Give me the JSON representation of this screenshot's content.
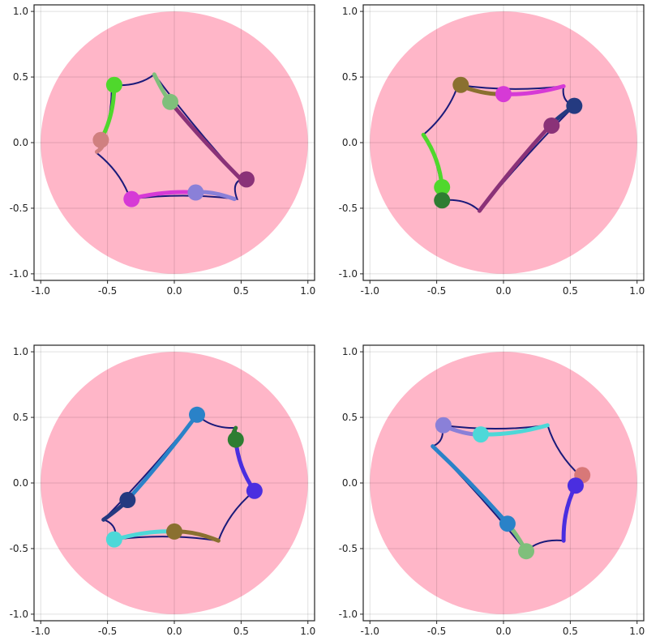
{
  "chart_data": [
    {
      "type": "scatter",
      "title": "",
      "xlabel": "",
      "ylabel": "",
      "xlim": [
        -1.05,
        1.05
      ],
      "ylim": [
        -1.05,
        1.05
      ],
      "xticks": [
        "-1.0",
        "-0.5",
        "0.0",
        "0.5",
        "1.0"
      ],
      "yticks": [
        "-1.0",
        "-0.5",
        "0.0",
        "0.5",
        "1.0"
      ],
      "grid": true,
      "disk": {
        "center": [
          0,
          0
        ],
        "radius": 1.0,
        "color": "#ffb6c8"
      },
      "boundary_color": "#1a1a7a",
      "boundary": [
        [
          -0.15,
          0.52
        ],
        [
          0.5,
          -0.28
        ],
        [
          0.47,
          -0.43
        ],
        [
          -0.33,
          -0.43
        ],
        [
          -0.58,
          -0.08
        ],
        [
          -0.47,
          0.44
        ],
        [
          -0.15,
          0.52
        ]
      ],
      "segments": [
        {
          "color": "#7fbf7b",
          "from": [
            -0.15,
            0.52
          ],
          "to": [
            -0.03,
            0.31
          ]
        },
        {
          "color": "#8a3278",
          "from": [
            -0.03,
            0.31
          ],
          "to": [
            0.5,
            -0.28
          ]
        },
        {
          "color": "#8a80d8",
          "from": [
            0.45,
            -0.43
          ],
          "to": [
            0.16,
            -0.38
          ]
        },
        {
          "color": "#d63ad6",
          "from": [
            0.16,
            -0.38
          ],
          "to": [
            -0.33,
            -0.43
          ]
        },
        {
          "color": "#d08080",
          "from": [
            -0.58,
            -0.07
          ],
          "to": [
            -0.55,
            0.02
          ]
        },
        {
          "color": "#4fd82c",
          "from": [
            -0.55,
            0.02
          ],
          "to": [
            -0.45,
            0.44
          ]
        }
      ],
      "points": [
        {
          "x": -0.45,
          "y": 0.44,
          "color": "#4fd82c"
        },
        {
          "x": -0.03,
          "y": 0.31,
          "color": "#7fbf7b"
        },
        {
          "x": -0.55,
          "y": 0.02,
          "color": "#d08080"
        },
        {
          "x": 0.54,
          "y": -0.28,
          "color": "#8a3278"
        },
        {
          "x": 0.16,
          "y": -0.38,
          "color": "#8a80d8"
        },
        {
          "x": -0.32,
          "y": -0.43,
          "color": "#d63ad6"
        }
      ]
    },
    {
      "type": "scatter",
      "title": "",
      "xlabel": "",
      "ylabel": "",
      "xlim": [
        -1.05,
        1.05
      ],
      "ylim": [
        -1.05,
        1.05
      ],
      "xticks": [
        "-1.0",
        "-0.5",
        "0.0",
        "0.5",
        "1.0"
      ],
      "yticks": [
        "-1.0",
        "-0.5",
        "0.0",
        "0.5",
        "1.0"
      ],
      "grid": true,
      "disk": {
        "center": [
          0,
          0
        ],
        "radius": 1.0,
        "color": "#ffb6c8"
      },
      "boundary_color": "#1a1a7a",
      "boundary": [
        [
          -0.34,
          0.44
        ],
        [
          0.45,
          0.43
        ],
        [
          0.53,
          0.28
        ],
        [
          -0.18,
          -0.52
        ],
        [
          -0.46,
          -0.44
        ],
        [
          -0.6,
          0.06
        ],
        [
          -0.34,
          0.44
        ]
      ],
      "segments": [
        {
          "color": "#8a7030",
          "from": [
            -0.34,
            0.44
          ],
          "to": [
            0.0,
            0.37
          ]
        },
        {
          "color": "#d63ad6",
          "from": [
            0.0,
            0.37
          ],
          "to": [
            0.45,
            0.43
          ]
        },
        {
          "color": "#243a80",
          "from": [
            0.53,
            0.28
          ],
          "to": [
            0.35,
            0.13
          ]
        },
        {
          "color": "#8a3278",
          "from": [
            0.35,
            0.13
          ],
          "to": [
            -0.18,
            -0.52
          ]
        },
        {
          "color": "#4fd82c",
          "from": [
            -0.6,
            0.06
          ],
          "to": [
            -0.46,
            -0.34
          ]
        },
        {
          "color": "#2e7d32",
          "from": [
            -0.46,
            -0.34
          ],
          "to": [
            -0.46,
            -0.43
          ]
        }
      ],
      "points": [
        {
          "x": -0.32,
          "y": 0.44,
          "color": "#8a7030"
        },
        {
          "x": 0.0,
          "y": 0.37,
          "color": "#d63ad6"
        },
        {
          "x": 0.53,
          "y": 0.28,
          "color": "#243a80"
        },
        {
          "x": 0.36,
          "y": 0.13,
          "color": "#8a3278"
        },
        {
          "x": -0.46,
          "y": -0.34,
          "color": "#4fd82c"
        },
        {
          "x": -0.46,
          "y": -0.44,
          "color": "#2e7d32"
        }
      ]
    },
    {
      "type": "scatter",
      "title": "",
      "xlabel": "",
      "ylabel": "",
      "xlim": [
        -1.05,
        1.05
      ],
      "ylim": [
        -1.05,
        1.05
      ],
      "xticks": [
        "-1.0",
        "-0.5",
        "0.0",
        "0.5",
        "1.0"
      ],
      "yticks": [
        "-1.0",
        "-0.5",
        "0.0",
        "0.5",
        "1.0"
      ],
      "grid": true,
      "disk": {
        "center": [
          0,
          0
        ],
        "radius": 1.0,
        "color": "#ffb6c8"
      },
      "boundary_color": "#1a1a7a",
      "boundary": [
        [
          0.17,
          0.52
        ],
        [
          0.46,
          0.42
        ],
        [
          0.6,
          -0.06
        ],
        [
          0.33,
          -0.44
        ],
        [
          -0.44,
          -0.43
        ],
        [
          -0.53,
          -0.28
        ],
        [
          0.17,
          0.52
        ]
      ],
      "segments": [
        {
          "color": "#2a82c8",
          "from": [
            0.17,
            0.52
          ],
          "to": [
            -0.35,
            -0.13
          ]
        },
        {
          "color": "#243a80",
          "from": [
            -0.35,
            -0.13
          ],
          "to": [
            -0.53,
            -0.28
          ]
        },
        {
          "color": "#2e7d32",
          "from": [
            0.46,
            0.42
          ],
          "to": [
            0.46,
            0.33
          ]
        },
        {
          "color": "#4a2ee0",
          "from": [
            0.46,
            0.33
          ],
          "to": [
            0.6,
            -0.06
          ]
        },
        {
          "color": "#8a7030",
          "from": [
            0.33,
            -0.44
          ],
          "to": [
            0.0,
            -0.37
          ]
        },
        {
          "color": "#4dd8d8",
          "from": [
            0.0,
            -0.37
          ],
          "to": [
            -0.44,
            -0.43
          ]
        }
      ],
      "points": [
        {
          "x": 0.17,
          "y": 0.52,
          "color": "#2a82c8"
        },
        {
          "x": 0.46,
          "y": 0.33,
          "color": "#2e7d32"
        },
        {
          "x": 0.6,
          "y": -0.06,
          "color": "#4a2ee0"
        },
        {
          "x": -0.35,
          "y": -0.13,
          "color": "#243a80"
        },
        {
          "x": 0.0,
          "y": -0.37,
          "color": "#8a7030"
        },
        {
          "x": -0.45,
          "y": -0.43,
          "color": "#4dd8d8"
        }
      ]
    },
    {
      "type": "scatter",
      "title": "",
      "xlabel": "",
      "ylabel": "",
      "xlim": [
        -1.05,
        1.05
      ],
      "ylim": [
        -1.05,
        1.05
      ],
      "xticks": [
        "-1.0",
        "-0.5",
        "0.0",
        "0.5",
        "1.0"
      ],
      "yticks": [
        "-1.0",
        "-0.5",
        "0.0",
        "0.5",
        "1.0"
      ],
      "grid": true,
      "disk": {
        "center": [
          0,
          0
        ],
        "radius": 1.0,
        "color": "#ffb6c8"
      },
      "boundary_color": "#1a1a7a",
      "boundary": [
        [
          -0.46,
          0.44
        ],
        [
          0.33,
          0.44
        ],
        [
          0.58,
          0.05
        ],
        [
          0.45,
          -0.44
        ],
        [
          0.17,
          -0.52
        ],
        [
          -0.53,
          0.28
        ],
        [
          -0.46,
          0.44
        ]
      ],
      "segments": [
        {
          "color": "#8a80d8",
          "from": [
            -0.46,
            0.44
          ],
          "to": [
            -0.17,
            0.37
          ]
        },
        {
          "color": "#4dd8d8",
          "from": [
            -0.17,
            0.37
          ],
          "to": [
            0.33,
            0.44
          ]
        },
        {
          "color": "#4a2ee0",
          "from": [
            0.54,
            -0.02
          ],
          "to": [
            0.45,
            -0.44
          ]
        },
        {
          "color": "#7fbf7b",
          "from": [
            0.17,
            -0.52
          ],
          "to": [
            0.03,
            -0.31
          ]
        },
        {
          "color": "#2a82c8",
          "from": [
            0.03,
            -0.31
          ],
          "to": [
            -0.53,
            0.28
          ]
        }
      ],
      "points": [
        {
          "x": -0.45,
          "y": 0.44,
          "color": "#8a80d8"
        },
        {
          "x": -0.17,
          "y": 0.37,
          "color": "#4dd8d8"
        },
        {
          "x": 0.59,
          "y": 0.06,
          "color": "#d87878"
        },
        {
          "x": 0.54,
          "y": -0.02,
          "color": "#4a2ee0"
        },
        {
          "x": 0.03,
          "y": -0.31,
          "color": "#2a82c8"
        },
        {
          "x": 0.17,
          "y": -0.52,
          "color": "#7fbf7b"
        }
      ]
    }
  ]
}
